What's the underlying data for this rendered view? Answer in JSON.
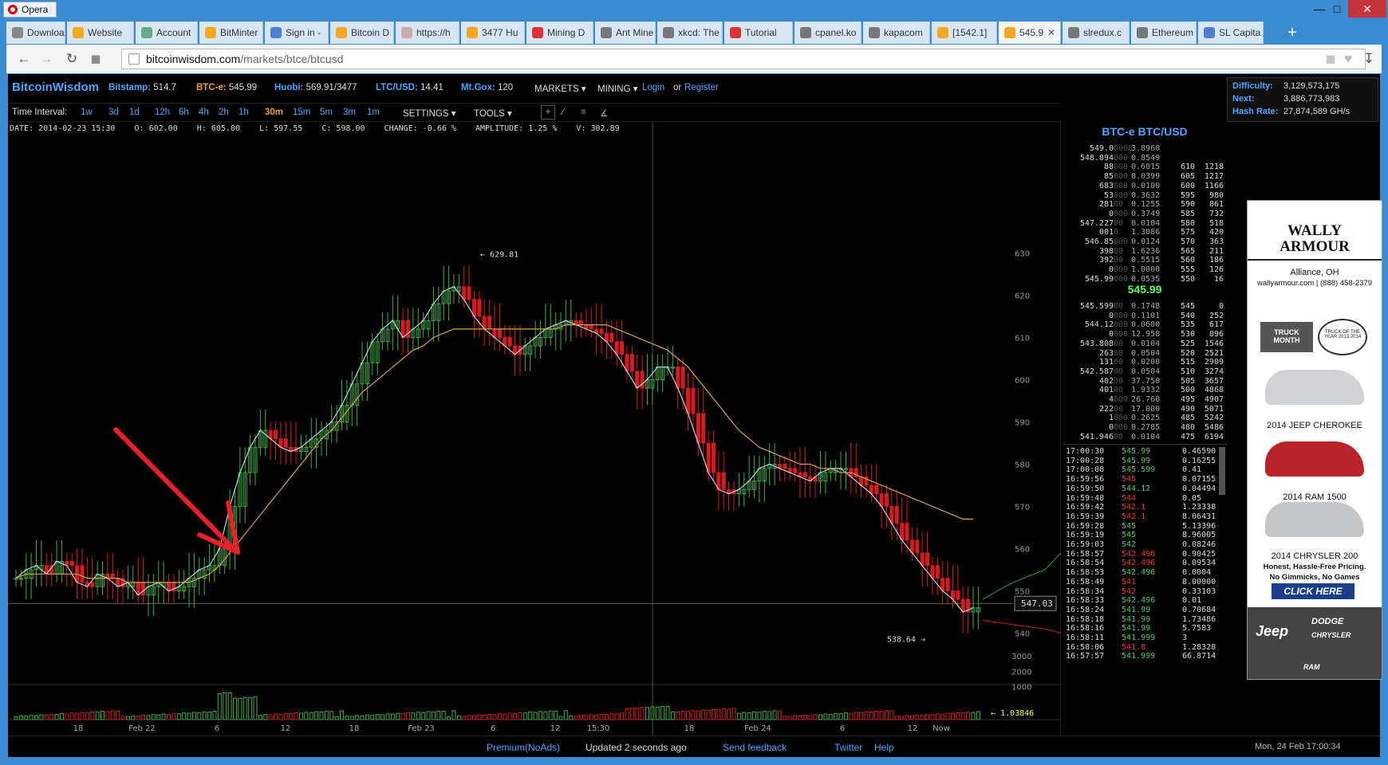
{
  "window": {
    "app": "Opera"
  },
  "tabs": [
    {
      "label": "Downloa",
      "color": "#888"
    },
    {
      "label": "Website",
      "color": "#f4a81c"
    },
    {
      "label": "Account",
      "color": "#6a8"
    },
    {
      "label": "BitMinter",
      "color": "#f4a81c"
    },
    {
      "label": "Sign in -",
      "color": "#4a7fd8"
    },
    {
      "label": "Bitcoin D",
      "color": "#f6a623"
    },
    {
      "label": "https://h",
      "color": "#caa"
    },
    {
      "label": "3477 Hu",
      "color": "#f6a623"
    },
    {
      "label": "Mining D",
      "color": "#d33"
    },
    {
      "label": "Ant Mine",
      "color": "#777"
    },
    {
      "label": "xkcd: The",
      "color": "#777"
    },
    {
      "label": "Tutorial",
      "color": "#d33"
    },
    {
      "label": "cpanel.ko",
      "color": "#777"
    },
    {
      "label": "kapacom",
      "color": "#777"
    },
    {
      "label": "[1542.1]",
      "color": "#f4a81c"
    },
    {
      "label": "545.9",
      "color": "#f6a623"
    },
    {
      "label": "slredux.c",
      "color": "#777"
    },
    {
      "label": "Ethereum",
      "color": "#777"
    },
    {
      "label": "SL Capita",
      "color": "#4a7fd8"
    }
  ],
  "address": {
    "domain": "bitcoinwisdom.com",
    "path": "/markets/btce/btcusd"
  },
  "topnav": {
    "logo": "BitcoinWisdom",
    "items": [
      {
        "label": "Bitstamp:",
        "value": "514.7",
        "lcolor": "#4da6ff",
        "vcolor": "#ddd"
      },
      {
        "label": "BTC-e:",
        "value": "545.99",
        "lcolor": "#f0a020",
        "vcolor": "#ddd"
      },
      {
        "label": "Huobi:",
        "value": "569.91/3477",
        "lcolor": "#4da6ff",
        "vcolor": "#ddd"
      },
      {
        "label": "LTC/USD:",
        "value": "14.41",
        "lcolor": "#4da6ff",
        "vcolor": "#ddd"
      },
      {
        "label": "Mt.Gox:",
        "value": "120",
        "lcolor": "#4da6ff",
        "vcolor": "#ddd"
      }
    ],
    "markets": "MARKETS",
    "mining": "MINING",
    "login": "Login",
    "or": "or",
    "register": "Register"
  },
  "network": {
    "difficulty_label": "Difficulty:",
    "difficulty": "3,129,573,175",
    "next_label": "Next:",
    "next": "3,886,773,983",
    "hashrate_label": "Hash Rate:",
    "hashrate": "27,874,589 GH/s"
  },
  "toolbar": {
    "label": "Time Interval:",
    "intervals": [
      "1w",
      "3d",
      "1d",
      "12h",
      "6h",
      "4h",
      "2h",
      "1h",
      "30m",
      "15m",
      "5m",
      "3m",
      "1m"
    ],
    "active": "30m",
    "settings": "SETTINGS",
    "tools": "TOOLS"
  },
  "infoline": "DATE: 2014-02-23 15:30    O: 602.00    H: 605.00    L: 597.55    C: 598.00    CHANGE: -0.66 %    AMPLITUDE: 1.25 %    V: 302.89",
  "chart_data": {
    "type": "line",
    "price_axis": [
      630,
      620,
      610,
      600,
      590,
      580,
      570,
      560,
      550,
      540
    ],
    "volume_axis": [
      3000,
      2000,
      1000
    ],
    "x_labels": [
      "18",
      "Feb 22",
      "6",
      "12",
      "18",
      "Feb 23",
      "6",
      "12",
      "15:30",
      "18",
      "Feb 24",
      "6",
      "12",
      "Now"
    ],
    "annotations": {
      "high": "629.81",
      "low": "538.64",
      "cursor": "547.03",
      "volume_last": "1.03846"
    },
    "ylim": [
      535,
      635
    ],
    "series": [
      {
        "values": [
          553,
          555,
          556,
          554,
          557,
          556,
          552,
          551,
          554,
          553,
          551,
          552,
          549,
          551,
          552,
          550,
          551,
          553,
          555,
          556,
          560,
          570,
          578,
          584,
          588,
          586,
          584,
          583,
          584,
          586,
          588,
          590,
          594,
          599,
          604,
          609,
          612,
          614,
          610,
          612,
          614,
          618,
          621,
          622,
          619,
          615,
          612,
          610,
          608,
          606,
          608,
          610,
          612,
          613,
          614,
          613,
          612,
          611,
          609,
          606,
          602,
          598,
          600,
          603,
          603,
          598,
          592,
          585,
          578,
          574,
          573,
          574,
          576,
          579,
          580,
          579,
          578,
          577,
          576,
          578,
          579,
          579,
          577,
          575,
          573,
          570,
          566,
          562,
          559,
          556,
          553,
          550,
          548,
          545,
          546
        ]
      },
      {
        "values": [
          553,
          554,
          554,
          554,
          554,
          554,
          554,
          553,
          553,
          553,
          553,
          552,
          552,
          552,
          552,
          552,
          552,
          552,
          553,
          554,
          556,
          559,
          562,
          565,
          568,
          571,
          574,
          577,
          580,
          583,
          586,
          588,
          591,
          594,
          597,
          599,
          601,
          603,
          605,
          607,
          608,
          610,
          611,
          612,
          612,
          612,
          612,
          612,
          612,
          612,
          612,
          612,
          612,
          612,
          613,
          613,
          613,
          613,
          613,
          612,
          611,
          610,
          609,
          608,
          607,
          605,
          603,
          600,
          597,
          594,
          591,
          588,
          586,
          584,
          583,
          582,
          581,
          580,
          580,
          579,
          579,
          578,
          578,
          577,
          576,
          575,
          574,
          573,
          572,
          571,
          570,
          569,
          568,
          567,
          567
        ]
      }
    ]
  },
  "orderbook": {
    "title": "BTC-e BTC/USD",
    "asks": [
      [
        "549.0",
        "0000",
        "3.8960",
        "",
        ""
      ],
      [
        "548.894",
        "000",
        "0.8549",
        "",
        ""
      ],
      [
        "88",
        "000",
        "0.6015",
        "610",
        "1218"
      ],
      [
        "85",
        "000",
        "0.0399",
        "605",
        "1217"
      ],
      [
        "683",
        "000",
        "0.0100",
        "600",
        "1166"
      ],
      [
        "53",
        "000",
        "0.3632",
        "595",
        "980"
      ],
      [
        "281",
        "00",
        "0.1255",
        "590",
        "861"
      ],
      [
        "0",
        "000",
        "0.3749",
        "585",
        "732"
      ],
      [
        "547.227",
        "00",
        "0.0104",
        "580",
        "518"
      ],
      [
        "001",
        "0",
        "1.3086",
        "575",
        "420"
      ],
      [
        "546.85",
        "000",
        "0.0124",
        "570",
        "363"
      ],
      [
        "398",
        "00",
        "1.6236",
        "565",
        "211"
      ],
      [
        "392",
        "00",
        "0.5515",
        "560",
        "186"
      ],
      [
        "0",
        "000",
        "1.0000",
        "555",
        "126"
      ],
      [
        "545.99",
        "000",
        "0.0535",
        "550",
        "16"
      ]
    ],
    "last": "545.99",
    "bids": [
      [
        "545.599",
        "00",
        "0.1748",
        "545",
        "0"
      ],
      [
        "0",
        "000",
        "0.1101",
        "540",
        "252"
      ],
      [
        "544.12",
        "000",
        "0.0600",
        "535",
        "617"
      ],
      [
        "0",
        "000",
        "12.958",
        "530",
        "896"
      ],
      [
        "543.808",
        "00",
        "0.0104",
        "525",
        "1546"
      ],
      [
        "263",
        "00",
        "0.0504",
        "520",
        "2521"
      ],
      [
        "131",
        "00",
        "0.0208",
        "515",
        "2909"
      ],
      [
        "542.587",
        "00",
        "0.0504",
        "510",
        "3274"
      ],
      [
        "402",
        "00",
        "37.750",
        "505",
        "3657"
      ],
      [
        "401",
        "00",
        "1.9332",
        "500",
        "4868"
      ],
      [
        "4",
        "000",
        "26.760",
        "495",
        "4907"
      ],
      [
        "222",
        "00",
        "17.000",
        "490",
        "5071"
      ],
      [
        "1",
        "000",
        "0.2625",
        "485",
        "5242"
      ],
      [
        "0",
        "000",
        "0.2785",
        "480",
        "5486"
      ],
      [
        "541.946",
        "00",
        "0.0104",
        "475",
        "6194"
      ]
    ],
    "trades": [
      [
        "17:00:30",
        "545.99",
        "0.46590",
        "g"
      ],
      [
        "17:00:28",
        "545.99",
        "0.16255",
        "g"
      ],
      [
        "17:00:08",
        "545.599",
        "0.41",
        "g"
      ],
      [
        "16:59:56",
        "545",
        "0.07155",
        "r"
      ],
      [
        "16:59:50",
        "544.12",
        "0.04494",
        "g"
      ],
      [
        "16:59:48",
        "544",
        "0.05",
        "r"
      ],
      [
        "16:59:42",
        "542.1",
        "1.23338",
        "r"
      ],
      [
        "16:59:39",
        "542.1",
        "8.06431",
        "r"
      ],
      [
        "16:59:28",
        "545",
        "5.13396",
        "g"
      ],
      [
        "16:59:19",
        "545",
        "8.96005",
        "g"
      ],
      [
        "16:59:03",
        "542",
        "0.08246",
        "g"
      ],
      [
        "16:58:57",
        "542.496",
        "0.90425",
        "r"
      ],
      [
        "16:58:54",
        "542.496",
        "0.09534",
        "r"
      ],
      [
        "16:58:53",
        "542.496",
        "0.0004",
        "g"
      ],
      [
        "16:58:49",
        "541",
        "8.00000",
        "r"
      ],
      [
        "16:58:34",
        "542",
        "0.33103",
        "r"
      ],
      [
        "16:58:33",
        "542.496",
        "0.01",
        "g"
      ],
      [
        "16:58:24",
        "541.99",
        "0.70684",
        "g"
      ],
      [
        "16:58:18",
        "541.99",
        "1.73486",
        "g"
      ],
      [
        "16:58:16",
        "541.99",
        "5.7583",
        "g"
      ],
      [
        "16:58:11",
        "541.999",
        "3",
        "g"
      ],
      [
        "16:58:06",
        "541.8",
        "1.28328",
        "r"
      ],
      [
        "16:57:57",
        "541.999",
        "66.8714",
        "g"
      ]
    ]
  },
  "ad": {
    "brand": "WALLY ARMOUR",
    "city": "Alliance, OH",
    "contact": "wallyarmour.com | (888) 458-2379",
    "badge1": "TRUCK MONTH",
    "badge2": "TRUCK OF THE YEAR 2013 2014",
    "car1": "2014 JEEP CHEROKEE",
    "car2": "2014 RAM 1500",
    "car3": "2014 CHRYSLER 200",
    "tag1": "Honest, Hassle-Free Pricing.",
    "tag2": "No Gimmicks, No Games",
    "cta": "CLICK HERE",
    "footer_brands": [
      "Jeep",
      "DODGE",
      "CHRYSLER",
      "RAM"
    ]
  },
  "footer": {
    "premium": "Premium(NoAds)",
    "updated": "Updated 2 seconds ago",
    "feedback": "Send feedback",
    "twitter": "Twitter",
    "help": "Help",
    "datetime": "Mon, 24 Feb 17:00:34"
  },
  "colors": {
    "up": "#3cb043",
    "down": "#d91b1b",
    "ema_fast": "#b8d0e8",
    "ema_slow": "#d9a24a",
    "link": "#4da6ff"
  }
}
